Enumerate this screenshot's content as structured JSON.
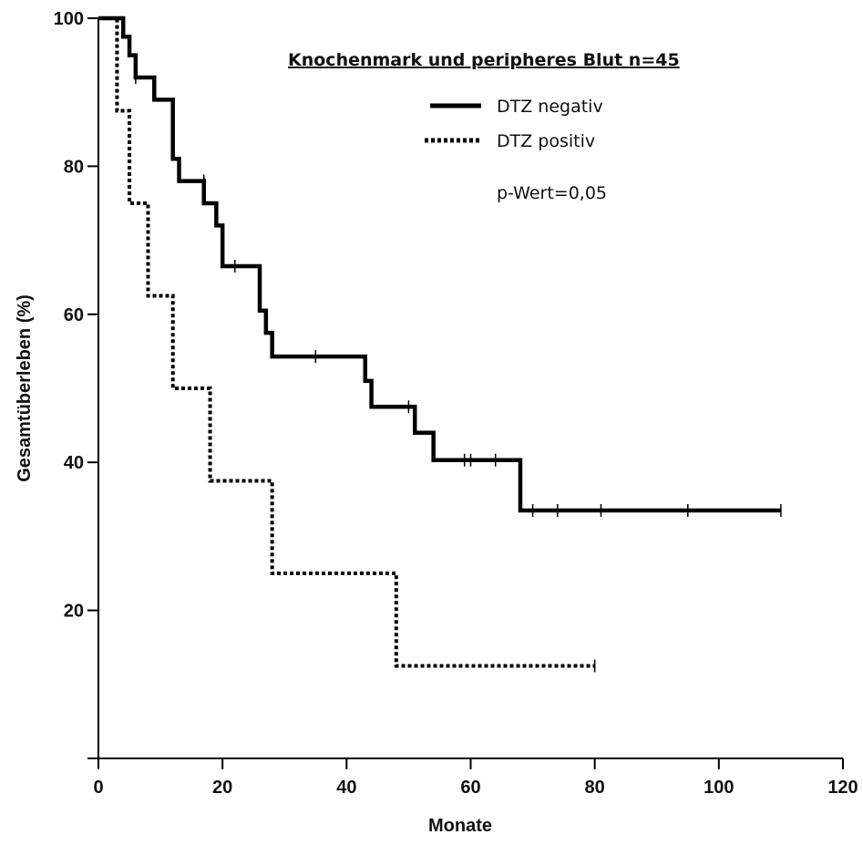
{
  "chart_data": {
    "type": "line",
    "title": "Knochenmark und peripheres Blut n=45",
    "xlabel": "Monate",
    "ylabel": "Gesamtüberleben (%)",
    "xlim": [
      0,
      120
    ],
    "ylim": [
      0,
      100
    ],
    "xticks": [
      0,
      20,
      40,
      60,
      80,
      100,
      120
    ],
    "yticks": [
      20,
      40,
      60,
      80,
      100
    ],
    "grid": false,
    "legend_position": "top-right",
    "annotation": "p-Wert=0,05",
    "series": [
      {
        "name": "DTZ negativ",
        "style": "solid",
        "color": "#000000",
        "steps": [
          [
            0,
            100
          ],
          [
            4,
            97.5
          ],
          [
            5,
            95
          ],
          [
            6,
            92
          ],
          [
            9,
            89
          ],
          [
            12,
            81
          ],
          [
            13,
            78
          ],
          [
            17,
            75
          ],
          [
            19,
            72
          ],
          [
            20,
            66.5
          ],
          [
            26,
            60.5
          ],
          [
            27,
            57.5
          ],
          [
            28,
            54.3
          ],
          [
            43,
            51
          ],
          [
            44,
            47.5
          ],
          [
            51,
            44
          ],
          [
            54,
            40.3
          ],
          [
            68,
            33.5
          ],
          [
            110,
            33.5
          ]
        ],
        "censored": [
          [
            6,
            92
          ],
          [
            17,
            78
          ],
          [
            22,
            66.5
          ],
          [
            35,
            54.3
          ],
          [
            50,
            47.5
          ],
          [
            59,
            40.3
          ],
          [
            60,
            40.3
          ],
          [
            64,
            40.3
          ],
          [
            70,
            33.5
          ],
          [
            74,
            33.5
          ],
          [
            81,
            33.5
          ],
          [
            95,
            33.5
          ],
          [
            110,
            33.5
          ]
        ]
      },
      {
        "name": "DTZ positiv",
        "style": "dotted",
        "color": "#000000",
        "steps": [
          [
            0,
            100
          ],
          [
            3,
            87.5
          ],
          [
            5,
            75
          ],
          [
            8,
            62.5
          ],
          [
            12,
            50
          ],
          [
            18,
            37.5
          ],
          [
            28,
            25
          ],
          [
            48,
            12.5
          ],
          [
            80,
            12.5
          ]
        ],
        "censored": [
          [
            80,
            12.5
          ]
        ]
      }
    ]
  }
}
